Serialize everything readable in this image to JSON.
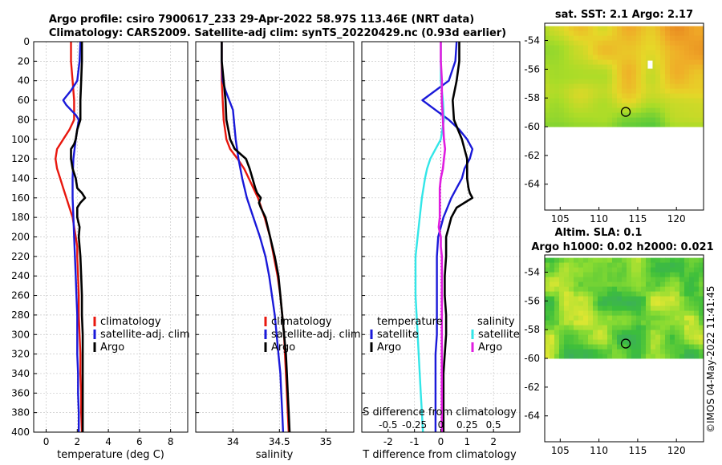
{
  "header": {
    "title_line1": "Argo profile: csiro 7900617_233 29-Apr-2022 58.97S 113.46E (NRT data)",
    "title_line2": "Climatology: CARS2009. Satellite-adj clim: synTS_20220429.nc (0.93d earlier)"
  },
  "colors": {
    "climatology": "#e8170e",
    "satellite": "#1a19d9",
    "argo": "#000000",
    "salinity_sat": "#32e6e8",
    "salinity_argo": "#e01ee0",
    "grid": "#c8c8c8"
  },
  "chart_data": [
    {
      "type": "line",
      "name": "temperature-panel",
      "xlabel": "temperature (deg C)",
      "ylabel": "depth",
      "xlim": [
        -0.8,
        9.1
      ],
      "ylim": [
        0,
        400
      ],
      "xticks": [
        0,
        2,
        4,
        6,
        8
      ],
      "yticks": [
        0,
        20,
        40,
        60,
        80,
        100,
        120,
        140,
        160,
        180,
        200,
        220,
        240,
        260,
        280,
        300,
        320,
        340,
        360,
        380,
        400
      ],
      "legend": [
        "climatology",
        "satellite-adj. clim",
        "Argo"
      ],
      "series": [
        {
          "name": "climatology",
          "depth": [
            0,
            20,
            40,
            60,
            80,
            90,
            100,
            110,
            120,
            130,
            140,
            150,
            160,
            170,
            180,
            190,
            200,
            210,
            220,
            240,
            260,
            280,
            300,
            320,
            340,
            360,
            380,
            400
          ],
          "values": [
            1.6,
            1.6,
            1.7,
            1.8,
            1.8,
            1.5,
            1.1,
            0.7,
            0.6,
            0.7,
            0.9,
            1.1,
            1.3,
            1.5,
            1.7,
            1.8,
            1.9,
            2.0,
            2.0,
            2.05,
            2.1,
            2.1,
            2.15,
            2.2,
            2.2,
            2.25,
            2.25,
            2.3
          ]
        },
        {
          "name": "satellite-adj. clim",
          "depth": [
            0,
            20,
            40,
            50,
            60,
            65,
            70,
            75,
            80,
            100,
            120,
            140,
            160,
            180,
            200,
            220,
            240,
            260,
            280,
            300,
            320,
            340,
            360,
            380,
            400
          ],
          "values": [
            2.2,
            2.15,
            2.0,
            1.6,
            1.1,
            1.3,
            1.6,
            1.9,
            2.1,
            1.9,
            1.75,
            1.7,
            1.7,
            1.75,
            1.8,
            1.85,
            1.9,
            1.95,
            2.0,
            2.0,
            2.0,
            2.05,
            2.05,
            2.1,
            2.1
          ]
        },
        {
          "name": "Argo",
          "depth": [
            0,
            20,
            40,
            60,
            80,
            90,
            100,
            105,
            110,
            120,
            130,
            140,
            150,
            155,
            160,
            165,
            170,
            180,
            190,
            200,
            220,
            240,
            260,
            280,
            300,
            320,
            340,
            360,
            380,
            400
          ],
          "values": [
            2.3,
            2.3,
            2.25,
            2.2,
            2.2,
            2.0,
            1.9,
            1.8,
            1.6,
            1.6,
            1.7,
            1.9,
            2.0,
            2.3,
            2.5,
            2.2,
            2.0,
            2.0,
            2.15,
            2.1,
            2.2,
            2.25,
            2.3,
            2.3,
            2.35,
            2.35,
            2.35,
            2.35,
            2.35,
            2.35
          ]
        }
      ]
    },
    {
      "type": "line",
      "name": "salinity-panel",
      "xlabel": "salinity",
      "ylabel": "depth",
      "xlim": [
        33.6,
        35.3
      ],
      "ylim": [
        0,
        400
      ],
      "xticks": [
        34,
        34.5,
        35
      ],
      "xticklabels": [
        "34",
        "34.5",
        "35"
      ],
      "legend": [
        "climatology",
        "satellite-adj. clim",
        "Argo"
      ],
      "series": [
        {
          "name": "climatology",
          "depth": [
            0,
            20,
            40,
            60,
            80,
            100,
            110,
            120,
            130,
            140,
            150,
            160,
            180,
            200,
            220,
            240,
            260,
            280,
            300,
            320,
            340,
            360,
            380,
            400
          ],
          "values": [
            33.88,
            33.88,
            33.88,
            33.89,
            33.9,
            33.93,
            33.97,
            34.05,
            34.12,
            34.17,
            34.22,
            34.27,
            34.34,
            34.4,
            34.44,
            34.48,
            34.51,
            34.53,
            34.55,
            34.56,
            34.57,
            34.58,
            34.59,
            34.6
          ]
        },
        {
          "name": "satellite-adj. clim",
          "depth": [
            0,
            20,
            40,
            50,
            60,
            70,
            80,
            100,
            120,
            140,
            160,
            180,
            200,
            220,
            240,
            260,
            280,
            300,
            320,
            340,
            360,
            380,
            400
          ],
          "values": [
            33.88,
            33.88,
            33.89,
            33.92,
            33.96,
            34.0,
            34.01,
            34.03,
            34.06,
            34.1,
            34.15,
            34.22,
            34.29,
            34.35,
            34.39,
            34.42,
            34.45,
            34.47,
            34.49,
            34.51,
            34.52,
            34.53,
            34.54
          ]
        },
        {
          "name": "Argo",
          "depth": [
            0,
            20,
            40,
            60,
            80,
            90,
            100,
            110,
            115,
            120,
            130,
            140,
            150,
            155,
            160,
            165,
            170,
            180,
            200,
            220,
            240,
            260,
            280,
            300,
            320,
            340,
            360,
            380,
            400
          ],
          "values": [
            33.88,
            33.88,
            33.9,
            33.92,
            33.93,
            33.95,
            33.97,
            34.02,
            34.08,
            34.14,
            34.18,
            34.21,
            34.24,
            34.26,
            34.3,
            34.28,
            34.3,
            34.35,
            34.4,
            34.45,
            34.49,
            34.51,
            34.53,
            34.55,
            34.57,
            34.58,
            34.59,
            34.6,
            34.61
          ]
        }
      ]
    },
    {
      "type": "line",
      "name": "difference-panel",
      "xlabel": "T difference from climatology",
      "ylabel": "depth",
      "xlabel_top": "S difference from climatology",
      "xlim": [
        -3,
        3
      ],
      "ylim": [
        0,
        400
      ],
      "xticks": [
        -2,
        -1,
        0,
        1,
        2
      ],
      "top_ticks_values": [
        -0.5,
        -0.25,
        0,
        0.25,
        0.5
      ],
      "top_ticks_labels": [
        "-0.5",
        "-0.25",
        "0",
        "0.25",
        "0.5"
      ],
      "top_range": [
        -0.75,
        0.75
      ],
      "legend_left": {
        "title": "temperature",
        "items": [
          "satellite",
          "Argo"
        ]
      },
      "legend_right": {
        "title": "salinity",
        "items": [
          "satellite",
          "Argo"
        ]
      },
      "series": [
        {
          "name": "T satellite",
          "axis": "T",
          "depth": [
            0,
            20,
            40,
            60,
            70,
            80,
            90,
            100,
            110,
            120,
            130,
            140,
            150,
            160,
            180,
            200,
            220,
            240,
            260,
            280,
            300,
            320,
            340,
            360,
            380,
            400
          ],
          "values": [
            0.6,
            0.55,
            0.3,
            -0.7,
            -0.2,
            0.3,
            0.7,
            1.0,
            1.2,
            1.1,
            0.9,
            0.8,
            0.6,
            0.4,
            0.1,
            -0.1,
            -0.15,
            -0.15,
            -0.15,
            -0.15,
            -0.15,
            -0.2,
            -0.2,
            -0.2,
            -0.2,
            -0.2
          ]
        },
        {
          "name": "T Argo",
          "axis": "T",
          "depth": [
            0,
            20,
            40,
            60,
            80,
            100,
            110,
            120,
            130,
            140,
            150,
            155,
            160,
            165,
            170,
            180,
            190,
            200,
            220,
            240,
            260,
            280,
            300,
            320,
            340,
            360,
            380,
            400
          ],
          "values": [
            0.7,
            0.7,
            0.6,
            0.45,
            0.5,
            0.8,
            0.9,
            1.0,
            1.0,
            1.0,
            1.05,
            1.1,
            1.2,
            0.9,
            0.6,
            0.4,
            0.3,
            0.2,
            0.2,
            0.15,
            0.15,
            0.2,
            0.2,
            0.15,
            0.1,
            0.1,
            0.1,
            0.1
          ]
        },
        {
          "name": "S satellite",
          "axis": "S",
          "depth": [
            0,
            20,
            40,
            60,
            80,
            100,
            110,
            120,
            130,
            140,
            160,
            180,
            200,
            220,
            240,
            260,
            280,
            300,
            320,
            340,
            360,
            380,
            400
          ],
          "values": [
            0,
            0,
            0,
            0.02,
            0.03,
            0.0,
            -0.05,
            -0.1,
            -0.13,
            -0.15,
            -0.18,
            -0.2,
            -0.22,
            -0.24,
            -0.24,
            -0.24,
            -0.23,
            -0.22,
            -0.21,
            -0.2,
            -0.19,
            -0.18,
            -0.17
          ]
        },
        {
          "name": "S Argo",
          "axis": "S",
          "depth": [
            0,
            20,
            40,
            60,
            80,
            100,
            110,
            120,
            130,
            140,
            150,
            160,
            170,
            180,
            190,
            200,
            210,
            220,
            240,
            260,
            280,
            300,
            320,
            340,
            360,
            380,
            400
          ],
          "values": [
            0,
            0,
            0.01,
            0.01,
            0.02,
            0.03,
            0.04,
            0.03,
            0.02,
            0.0,
            -0.01,
            -0.01,
            -0.01,
            -0.01,
            -0.02,
            0.0,
            0.0,
            0.01,
            0.01,
            0.01,
            0.01,
            0.01,
            0.01,
            0.01,
            0.01,
            0.01,
            0.01
          ]
        }
      ]
    },
    {
      "type": "heatmap",
      "name": "sst-map",
      "title": "sat. SST: 2.1 Argo: 2.17",
      "xlim": [
        103,
        123.5
      ],
      "ylim": [
        -65.8,
        -52.8
      ],
      "xticks": [
        105,
        110,
        115,
        120
      ],
      "yticks": [
        -54,
        -56,
        -58,
        -60,
        -62,
        -64
      ],
      "data_extent": {
        "lon": [
          103,
          123.5
        ],
        "lat": [
          -60,
          -53
        ]
      },
      "marker": {
        "lon": 113.46,
        "lat": -58.97
      }
    },
    {
      "type": "heatmap",
      "name": "sla-map",
      "title_line1": "Altim. SLA: 0.1",
      "title_line2": "Argo h1000: 0.02 h2000: 0.021",
      "xlim": [
        103,
        123.5
      ],
      "ylim": [
        -65.8,
        -52.8
      ],
      "xticks": [
        105,
        110,
        115,
        120
      ],
      "yticks": [
        -54,
        -56,
        -58,
        -60,
        -62,
        -64
      ],
      "data_extent": {
        "lon": [
          103,
          123.5
        ],
        "lat": [
          -60,
          -53
        ]
      },
      "marker": {
        "lon": 113.46,
        "lat": -58.97
      }
    }
  ],
  "footer": {
    "copyright": "©IMOS 04-May-2022 11:41:45"
  }
}
